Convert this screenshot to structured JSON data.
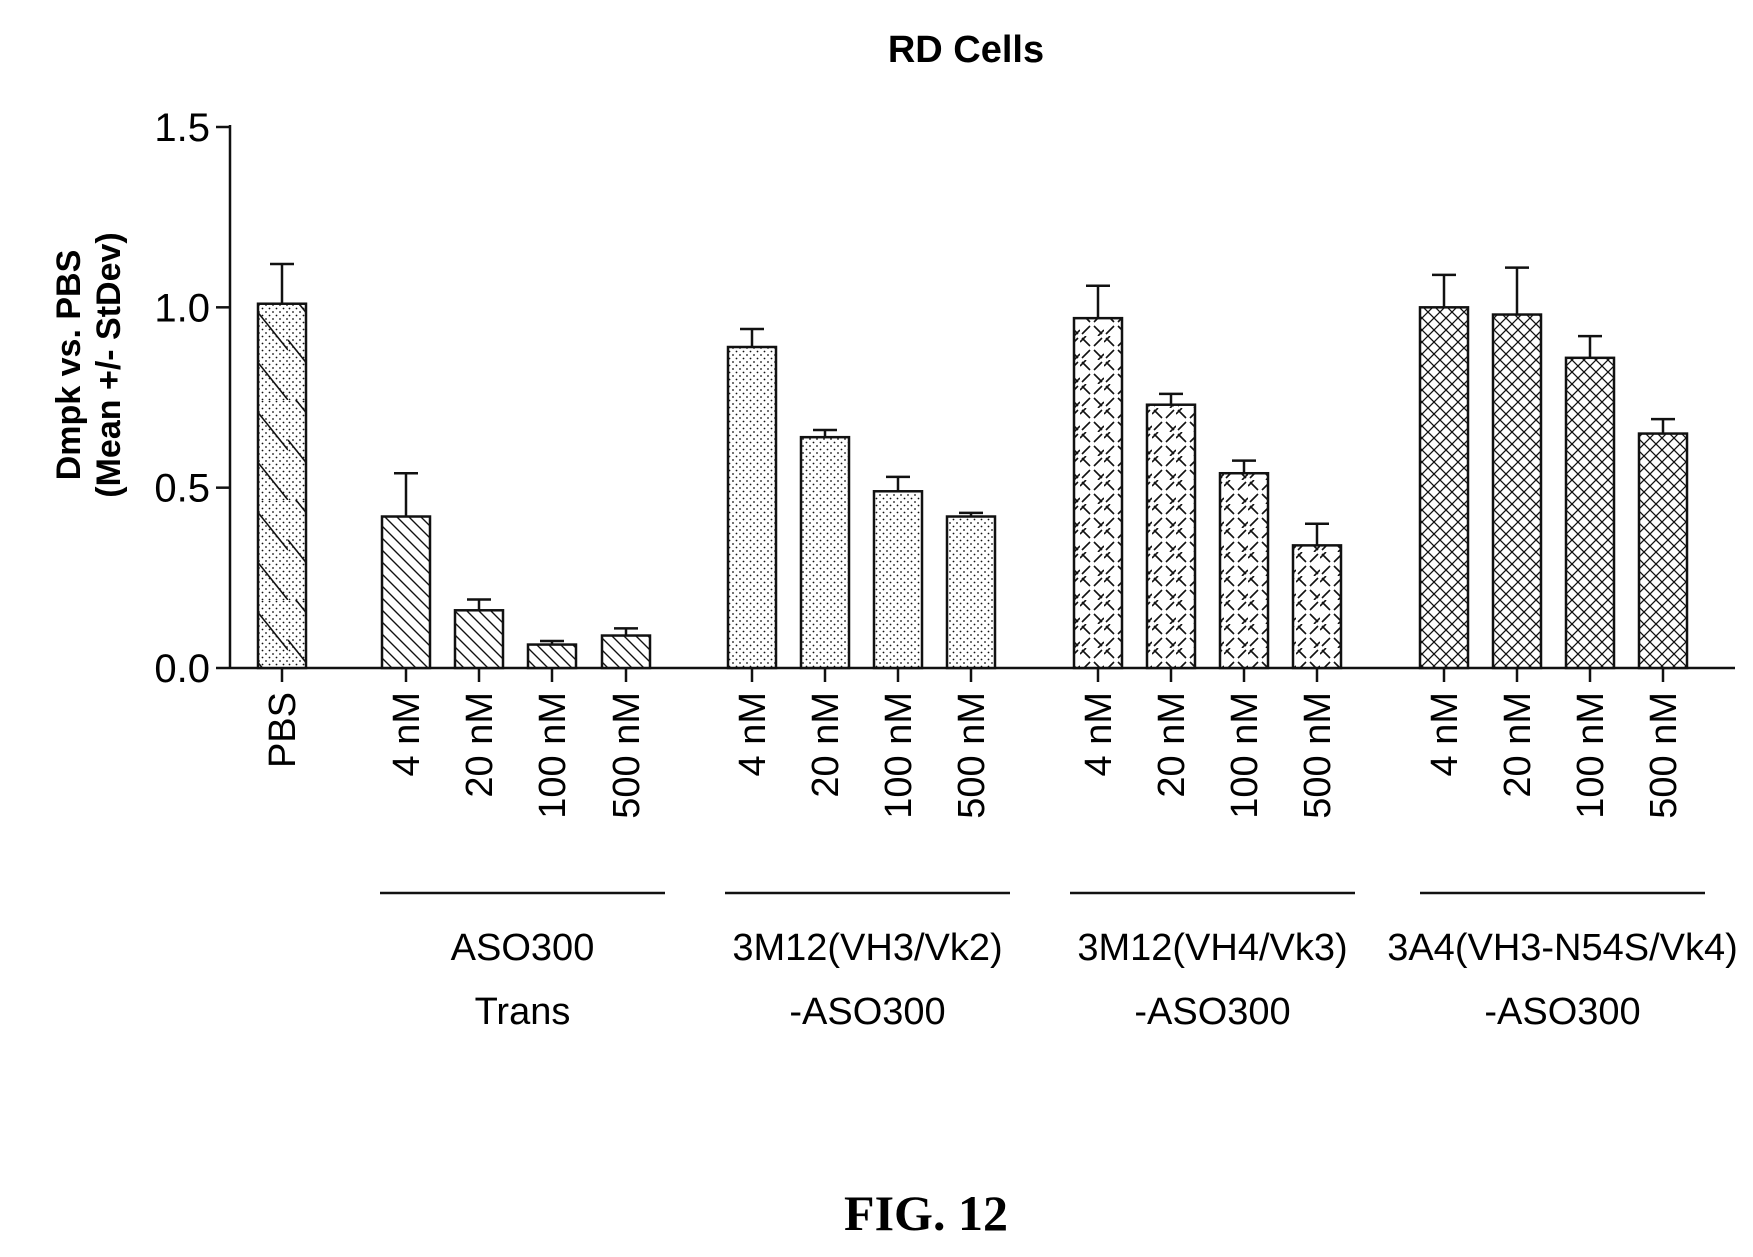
{
  "figure_label": "FIG. 12",
  "chart_data": {
    "type": "bar",
    "title": "RD Cells",
    "ylabel": [
      "Dmpk vs. PBS",
      "(Mean +/- StDev)"
    ],
    "xlabel": "",
    "ylim": [
      0,
      1.5
    ],
    "yticks": [
      "0.0",
      "0.5",
      "1.0",
      "1.5"
    ],
    "ytick_values": [
      0,
      0.5,
      1.0,
      1.5
    ],
    "grid": false,
    "legend": "none",
    "groups": [
      {
        "name_lines": [],
        "pattern": "pbs",
        "categories": [
          "PBS"
        ],
        "values": [
          1.01
        ],
        "errors": [
          0.11
        ]
      },
      {
        "name_lines": [
          "ASO300",
          "Trans"
        ],
        "pattern": "diag",
        "categories": [
          "4 nM",
          "20 nM",
          "100 nM",
          "500 nM"
        ],
        "values": [
          0.42,
          0.16,
          0.065,
          0.09
        ],
        "errors": [
          0.12,
          0.03,
          0.01,
          0.02
        ]
      },
      {
        "name_lines": [
          "3M12(VH3/Vk2)",
          "-ASO300"
        ],
        "pattern": "dots",
        "categories": [
          "4 nM",
          "20 nM",
          "100 nM",
          "500 nM"
        ],
        "values": [
          0.89,
          0.64,
          0.49,
          0.42
        ],
        "errors": [
          0.05,
          0.02,
          0.04,
          0.01
        ]
      },
      {
        "name_lines": [
          "3M12(VH4/Vk3)",
          "-ASO300"
        ],
        "pattern": "weave",
        "categories": [
          "4 nM",
          "20 nM",
          "100 nM",
          "500 nM"
        ],
        "values": [
          0.97,
          0.73,
          0.54,
          0.34
        ],
        "errors": [
          0.09,
          0.03,
          0.035,
          0.06
        ]
      },
      {
        "name_lines": [
          "3A4(VH3-N54S/Vk4)",
          "-ASO300"
        ],
        "pattern": "cross",
        "categories": [
          "4 nM",
          "20 nM",
          "100 nM",
          "500 nM"
        ],
        "values": [
          1.0,
          0.98,
          0.86,
          0.65
        ],
        "errors": [
          0.09,
          0.13,
          0.06,
          0.04
        ]
      }
    ]
  }
}
